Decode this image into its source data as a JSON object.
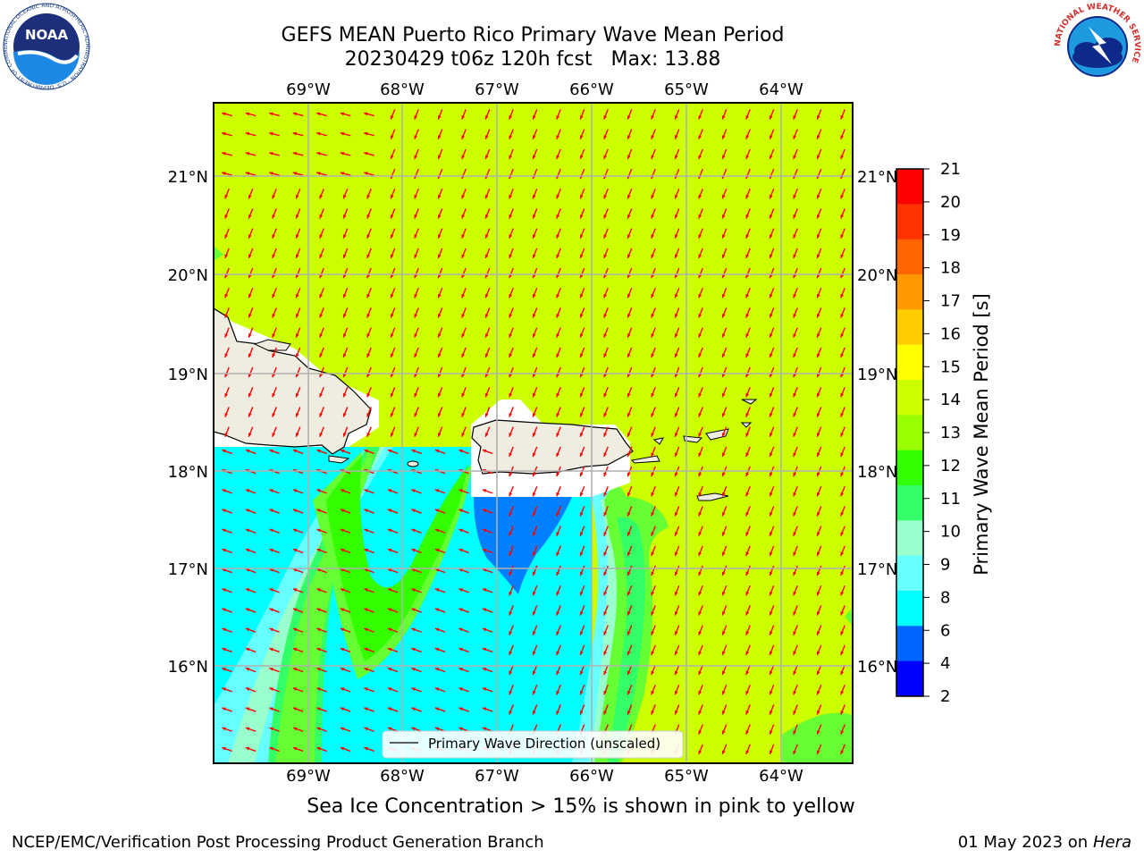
{
  "title_line1": "GEFS MEAN Puerto Rico Primary Wave Mean Period",
  "title_line2": "20230429 t06z 120h fcst   Max: 13.88",
  "caption": "Sea Ice Concentration > 15% is shown in pink to yellow",
  "footer_left": "NCEP/EMC/Verification Post Processing Product Generation Branch",
  "footer_right_date": "01 May 2023 on",
  "footer_right_host": "Hera",
  "logos": {
    "noaa_text": "NOAA",
    "noaa_ring": "NATIONAL OCEANIC AND ATMOSPHERIC ADMINISTRATION · U.S. DEPARTMENT OF COMMERCE",
    "nws_ring": "NATIONAL WEATHER SERVICE"
  },
  "map": {
    "lon_labels": [
      "69°W",
      "68°W",
      "67°W",
      "66°W",
      "65°W",
      "64°W"
    ],
    "lat_labels": [
      "21°N",
      "20°N",
      "19°N",
      "18°N",
      "17°N",
      "16°N"
    ],
    "legend_label": "Primary Wave Direction (unscaled)",
    "arrow_color": "#ff0000",
    "land_color": "#efede0"
  },
  "colorbar": {
    "label": "Primary Wave Mean Period [s]",
    "ticks": [
      "21",
      "20",
      "19",
      "18",
      "17",
      "16",
      "15",
      "14",
      "13",
      "12",
      "11",
      "10",
      "9",
      "8",
      "6",
      "4",
      "2"
    ],
    "colors": [
      "#ff0000",
      "#ff3300",
      "#ff6600",
      "#ff9900",
      "#ffcc00",
      "#ffff00",
      "#ccff00",
      "#99ff00",
      "#33ff00",
      "#33ff66",
      "#99ffcc",
      "#66ffff",
      "#00ffff",
      "#0066ff",
      "#0000ff"
    ]
  }
}
